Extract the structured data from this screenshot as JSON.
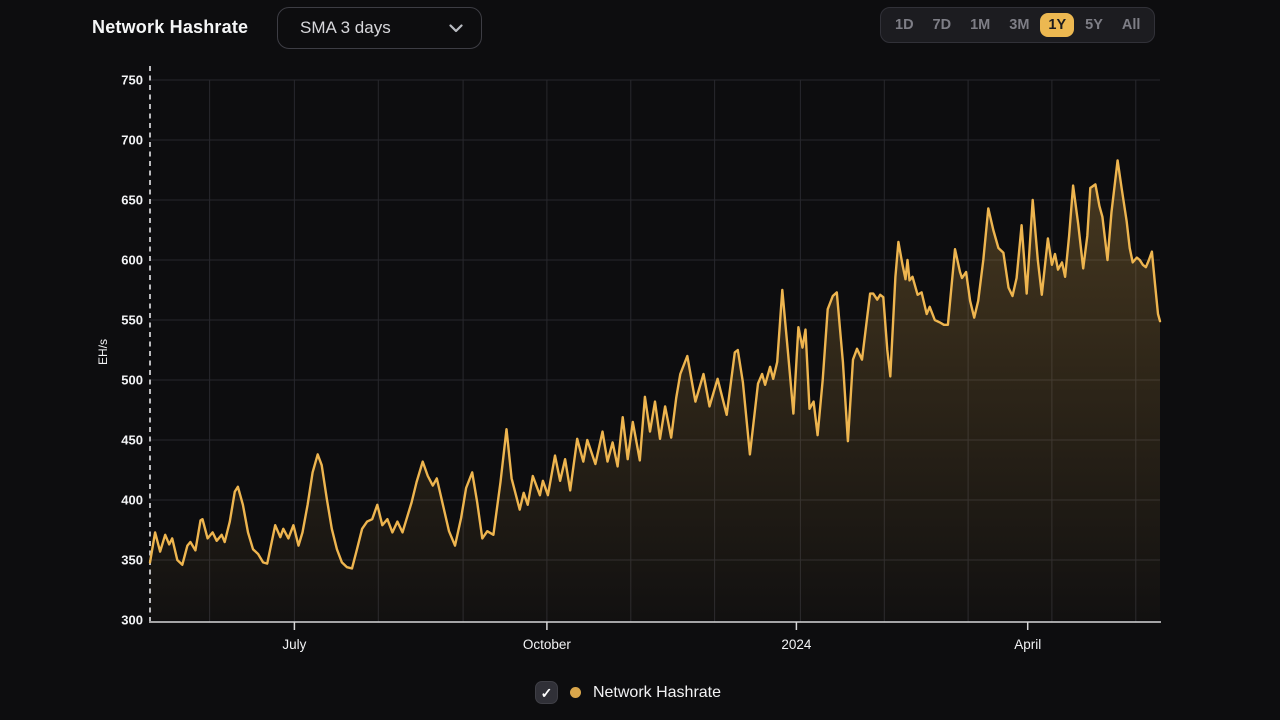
{
  "header": {
    "title": "Network Hashrate",
    "sma_dropdown": {
      "value": "SMA 3 days",
      "chevron_icon": "chevron-down"
    },
    "range_buttons": {
      "options": [
        "1D",
        "7D",
        "1M",
        "3M",
        "1Y",
        "5Y",
        "All"
      ],
      "active": "1Y"
    }
  },
  "legend": {
    "checkbox_checked": true,
    "check_icon": "✓",
    "series_label": "Network Hashrate"
  },
  "colors": {
    "background": "#0d0d0f",
    "series_line": "#eeb54f",
    "series_dot": "#d9a64b",
    "active_button_bg": "#ecb851",
    "active_button_text": "#1b1b1d",
    "inactive_button_text": "#7e7e86",
    "grid": "#28282d",
    "axis_line": "#d6d6d8",
    "dashed_start_line": "#cfcfd2",
    "axis_text": "#f2f3f5"
  },
  "chart_data": {
    "type": "area",
    "title": "Network Hashrate",
    "ylabel": "EH/s",
    "ylim": [
      300,
      750
    ],
    "y_ticks": [
      300,
      350,
      400,
      450,
      500,
      550,
      600,
      650,
      700,
      750
    ],
    "x_ticks": [
      {
        "label": "July",
        "pct": 14.3
      },
      {
        "label": "October",
        "pct": 39.3
      },
      {
        "label": "2024",
        "pct": 64.0
      },
      {
        "label": "April",
        "pct": 86.9
      }
    ],
    "x_gridlines_pct": [
      5.9,
      14.3,
      22.6,
      31.0,
      39.3,
      47.6,
      55.9,
      64.4,
      72.7,
      81.0,
      89.3,
      97.6
    ],
    "legend_position": "bottom",
    "grid": true,
    "series": [
      {
        "name": "Network Hashrate",
        "unit": "EH/s",
        "color": "#eeb54f",
        "points": [
          [
            0,
            348
          ],
          [
            0.5,
            373
          ],
          [
            1,
            357
          ],
          [
            1.5,
            371
          ],
          [
            1.9,
            363
          ],
          [
            2.2,
            368
          ],
          [
            2.7,
            350
          ],
          [
            3.2,
            346
          ],
          [
            3.7,
            362
          ],
          [
            4,
            365
          ],
          [
            4.5,
            358
          ],
          [
            5,
            383
          ],
          [
            5.2,
            384
          ],
          [
            5.7,
            368
          ],
          [
            6.2,
            373
          ],
          [
            6.6,
            366
          ],
          [
            7.1,
            371
          ],
          [
            7.4,
            365
          ],
          [
            7.9,
            382
          ],
          [
            8.4,
            407
          ],
          [
            8.7,
            411
          ],
          [
            9.2,
            396
          ],
          [
            9.7,
            373
          ],
          [
            10.2,
            359
          ],
          [
            10.7,
            355
          ],
          [
            11.2,
            348
          ],
          [
            11.6,
            347
          ],
          [
            11.9,
            359
          ],
          [
            12.4,
            379
          ],
          [
            12.9,
            369
          ],
          [
            13.2,
            376
          ],
          [
            13.7,
            368
          ],
          [
            14.2,
            379
          ],
          [
            14.7,
            362
          ],
          [
            15.1,
            373
          ],
          [
            15.6,
            396
          ],
          [
            16.1,
            423
          ],
          [
            16.6,
            438
          ],
          [
            17,
            429
          ],
          [
            17.5,
            401
          ],
          [
            18,
            376
          ],
          [
            18.5,
            359
          ],
          [
            19,
            348
          ],
          [
            19.5,
            344
          ],
          [
            20,
            343
          ],
          [
            20.5,
            359
          ],
          [
            21,
            376
          ],
          [
            21.5,
            382
          ],
          [
            22,
            384
          ],
          [
            22.5,
            396
          ],
          [
            23,
            379
          ],
          [
            23.5,
            384
          ],
          [
            24,
            373
          ],
          [
            24.5,
            382
          ],
          [
            25,
            373
          ],
          [
            25.4,
            384
          ],
          [
            25.9,
            398
          ],
          [
            26.4,
            415
          ],
          [
            27,
            432
          ],
          [
            27.5,
            420
          ],
          [
            28,
            412
          ],
          [
            28.4,
            418
          ],
          [
            29,
            396
          ],
          [
            29.6,
            374
          ],
          [
            30.2,
            362
          ],
          [
            30.8,
            385
          ],
          [
            31.3,
            410
          ],
          [
            31.9,
            423
          ],
          [
            32.4,
            398
          ],
          [
            32.9,
            368
          ],
          [
            33.4,
            374
          ],
          [
            34,
            371
          ],
          [
            34.7,
            415
          ],
          [
            35.3,
            459
          ],
          [
            35.8,
            418
          ],
          [
            36.6,
            392
          ],
          [
            37,
            406
          ],
          [
            37.4,
            396
          ],
          [
            37.9,
            420
          ],
          [
            38.6,
            404
          ],
          [
            38.9,
            416
          ],
          [
            39.4,
            404
          ],
          [
            40.1,
            437
          ],
          [
            40.6,
            416
          ],
          [
            41.1,
            434
          ],
          [
            41.6,
            408
          ],
          [
            42.3,
            451
          ],
          [
            42.9,
            432
          ],
          [
            43.3,
            450
          ],
          [
            44.1,
            430
          ],
          [
            44.8,
            457
          ],
          [
            45.3,
            432
          ],
          [
            45.8,
            448
          ],
          [
            46.3,
            428
          ],
          [
            46.8,
            469
          ],
          [
            47.3,
            434
          ],
          [
            47.8,
            465
          ],
          [
            48.5,
            433
          ],
          [
            49,
            486
          ],
          [
            49.5,
            457
          ],
          [
            50,
            482
          ],
          [
            50.5,
            451
          ],
          [
            51,
            478
          ],
          [
            51.6,
            452
          ],
          [
            52.1,
            485
          ],
          [
            52.5,
            505
          ],
          [
            53.2,
            520
          ],
          [
            54,
            482
          ],
          [
            54.8,
            505
          ],
          [
            55.4,
            478
          ],
          [
            56.2,
            501
          ],
          [
            57.1,
            471
          ],
          [
            57.9,
            523
          ],
          [
            58.2,
            525
          ],
          [
            58.7,
            498
          ],
          [
            59.4,
            438
          ],
          [
            60.2,
            497
          ],
          [
            60.6,
            505
          ],
          [
            60.9,
            496
          ],
          [
            61.4,
            511
          ],
          [
            61.7,
            501
          ],
          [
            62.1,
            515
          ],
          [
            62.6,
            575
          ],
          [
            63.2,
            520
          ],
          [
            63.7,
            472
          ],
          [
            64.2,
            544
          ],
          [
            64.6,
            527
          ],
          [
            64.9,
            542
          ],
          [
            65.3,
            476
          ],
          [
            65.7,
            482
          ],
          [
            66.1,
            454
          ],
          [
            66.6,
            500
          ],
          [
            67.1,
            559
          ],
          [
            67.6,
            570
          ],
          [
            68,
            573
          ],
          [
            68.6,
            515
          ],
          [
            69.1,
            449
          ],
          [
            69.6,
            517
          ],
          [
            70,
            526
          ],
          [
            70.5,
            517
          ],
          [
            70.9,
            545
          ],
          [
            71.3,
            572
          ],
          [
            71.6,
            572
          ],
          [
            72,
            567
          ],
          [
            72.3,
            571
          ],
          [
            72.6,
            569
          ],
          [
            73,
            525
          ],
          [
            73.3,
            503
          ],
          [
            73.8,
            586
          ],
          [
            74.1,
            615
          ],
          [
            74.5,
            596
          ],
          [
            74.8,
            584
          ],
          [
            75,
            600
          ],
          [
            75.2,
            583
          ],
          [
            75.5,
            586
          ],
          [
            76,
            571
          ],
          [
            76.4,
            573
          ],
          [
            76.9,
            555
          ],
          [
            77.2,
            561
          ],
          [
            77.7,
            550
          ],
          [
            78.2,
            548
          ],
          [
            78.6,
            546
          ],
          [
            79,
            546
          ],
          [
            79.7,
            609
          ],
          [
            80.2,
            590
          ],
          [
            80.4,
            585
          ],
          [
            80.8,
            590
          ],
          [
            81.2,
            566
          ],
          [
            81.6,
            552
          ],
          [
            82,
            566
          ],
          [
            82.5,
            600
          ],
          [
            83,
            643
          ],
          [
            83.5,
            625
          ],
          [
            84,
            610
          ],
          [
            84.5,
            606
          ],
          [
            85,
            577
          ],
          [
            85.4,
            570
          ],
          [
            85.8,
            585
          ],
          [
            86.3,
            629
          ],
          [
            86.8,
            572
          ],
          [
            87.4,
            650
          ],
          [
            87.9,
            600
          ],
          [
            88.3,
            571
          ],
          [
            88.9,
            618
          ],
          [
            89.3,
            596
          ],
          [
            89.6,
            605
          ],
          [
            89.9,
            592
          ],
          [
            90.3,
            598
          ],
          [
            90.6,
            586
          ],
          [
            91,
            620
          ],
          [
            91.4,
            662
          ],
          [
            91.9,
            630
          ],
          [
            92.4,
            593
          ],
          [
            92.8,
            620
          ],
          [
            93.1,
            660
          ],
          [
            93.6,
            663
          ],
          [
            94,
            645
          ],
          [
            94.3,
            636
          ],
          [
            94.8,
            600
          ],
          [
            95.2,
            640
          ],
          [
            95.8,
            683
          ],
          [
            96.2,
            660
          ],
          [
            96.7,
            632
          ],
          [
            97,
            610
          ],
          [
            97.3,
            598
          ],
          [
            97.7,
            602
          ],
          [
            98,
            600
          ],
          [
            98.3,
            596
          ],
          [
            98.6,
            594
          ],
          [
            98.9,
            600
          ],
          [
            99.2,
            607
          ],
          [
            99.5,
            580
          ],
          [
            99.8,
            555
          ],
          [
            100,
            549
          ]
        ]
      }
    ]
  }
}
